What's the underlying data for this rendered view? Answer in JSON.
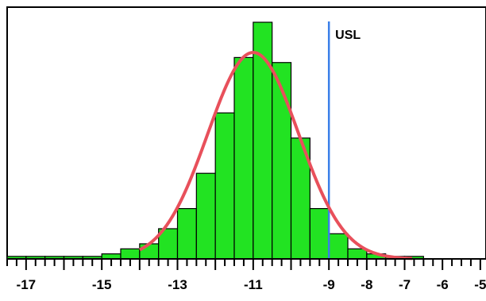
{
  "chart_data": {
    "type": "bar",
    "title": "",
    "xlabel": "",
    "ylabel": "",
    "x_tick_labels": [
      "-17",
      "-15",
      "-13",
      "-11",
      "-9",
      "-8",
      "-7",
      "-6",
      "-5"
    ],
    "x_tick_values": [
      -17,
      -15,
      -13,
      -11,
      -9,
      -8,
      -7,
      -6,
      -5
    ],
    "bin_width": 0.5,
    "bins": [
      {
        "start": -17.5,
        "end": -17.0,
        "count": 0.5
      },
      {
        "start": -17.0,
        "end": -16.5,
        "count": 0.5
      },
      {
        "start": -16.5,
        "end": -16.0,
        "count": 0.5
      },
      {
        "start": -16.0,
        "end": -15.5,
        "count": 0.5
      },
      {
        "start": -15.5,
        "end": -15.0,
        "count": 0.5
      },
      {
        "start": -15.0,
        "end": -14.5,
        "count": 1
      },
      {
        "start": -14.5,
        "end": -14.0,
        "count": 2
      },
      {
        "start": -14.0,
        "end": -13.5,
        "count": 3
      },
      {
        "start": -13.5,
        "end": -13.0,
        "count": 6
      },
      {
        "start": -13.0,
        "end": -12.5,
        "count": 10
      },
      {
        "start": -12.5,
        "end": -12.0,
        "count": 17
      },
      {
        "start": -12.0,
        "end": -11.5,
        "count": 29
      },
      {
        "start": -11.5,
        "end": -11.0,
        "count": 40
      },
      {
        "start": -11.0,
        "end": -10.5,
        "count": 47
      },
      {
        "start": -10.5,
        "end": -10.0,
        "count": 39
      },
      {
        "start": -10.0,
        "end": -9.5,
        "count": 24
      },
      {
        "start": -9.5,
        "end": -9.0,
        "count": 10
      },
      {
        "start": -9.0,
        "end": -8.5,
        "count": 5
      },
      {
        "start": -8.5,
        "end": -8.0,
        "count": 2
      },
      {
        "start": -8.0,
        "end": -7.5,
        "count": 1
      },
      {
        "start": -7.5,
        "end": -7.0,
        "count": 0.5
      },
      {
        "start": -7.0,
        "end": -6.5,
        "count": 0.5
      }
    ],
    "fit_curve": {
      "type": "normal",
      "mean": -11.0,
      "sd": 1.2,
      "peak": 41
    },
    "usl": {
      "label": "USL",
      "value": -9.0
    },
    "ylim": [
      0,
      50
    ],
    "xlim": [
      -17.5,
      -4.85
    ],
    "grid": false,
    "colors": {
      "bars": "#22e322",
      "bar_edge": "#000000",
      "curve": "#e8505b",
      "usl_line": "#3a7ee8"
    }
  }
}
